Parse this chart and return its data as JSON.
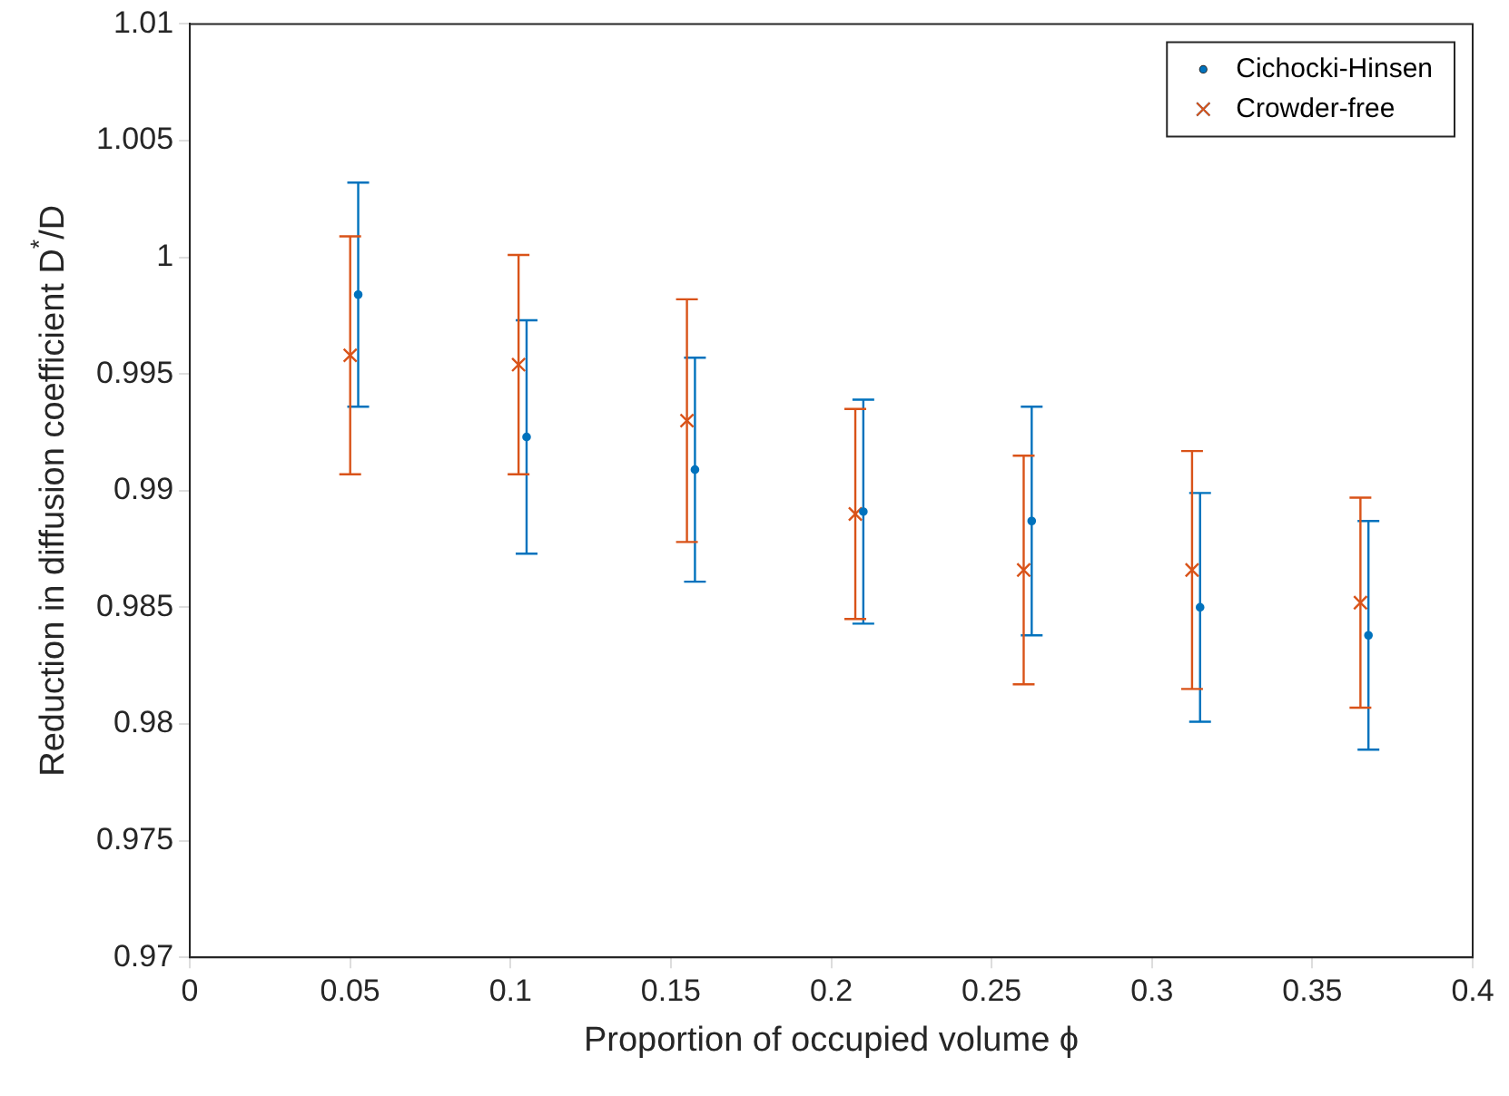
{
  "chart_data": {
    "type": "scatter",
    "xlabel": "Proportion of occupied volume ϕ",
    "ylabel": "Reduction in diffusion coefficient D$^{*}$/D",
    "xlim": [
      0,
      0.4
    ],
    "xticks": [
      0,
      0.05,
      0.1,
      0.15,
      0.2,
      0.25,
      0.3,
      0.35,
      0.4
    ],
    "ylim": [
      0.97,
      1.01
    ],
    "yticks": [
      0.97,
      0.975,
      0.98,
      0.985,
      0.99,
      0.995,
      1,
      1.005,
      1.01
    ],
    "grid": false,
    "legend": "top right",
    "series": [
      {
        "name": "Cichocki-Hinsen",
        "color": "#0072bd",
        "marker": "circle",
        "x": [
          0.0525,
          0.105,
          0.1575,
          0.21,
          0.2625,
          0.315,
          0.3675
        ],
        "values": [
          0.9984,
          0.9923,
          0.9909,
          0.9891,
          0.9887,
          0.985,
          0.9838
        ],
        "errors": [
          0.0048,
          0.005,
          0.0048,
          0.0048,
          0.0049,
          0.0049,
          0.0049
        ]
      },
      {
        "name": "Crowder-free",
        "color": "#d95319",
        "marker": "cross",
        "x": [
          0.05,
          0.1025,
          0.155,
          0.2075,
          0.26,
          0.3125,
          0.365
        ],
        "values": [
          0.9958,
          0.9954,
          0.993,
          0.989,
          0.9866,
          0.9866,
          0.9852
        ],
        "errors": [
          0.0051,
          0.0047,
          0.0052,
          0.0045,
          0.0049,
          0.0051,
          0.0045
        ]
      }
    ]
  }
}
